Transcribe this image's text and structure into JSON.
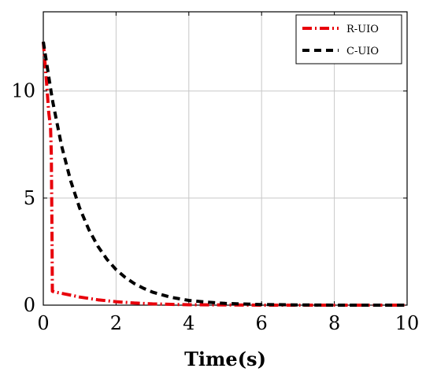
{
  "chart_data": {
    "type": "line",
    "title": "",
    "xlabel": "Time(s)",
    "ylabel": "",
    "xlim": [
      0,
      10
    ],
    "ylim": [
      0,
      13.7
    ],
    "xticks": [
      0,
      2,
      4,
      6,
      8,
      10
    ],
    "yticks": [
      0,
      5,
      10
    ],
    "grid": true,
    "legend_position": "top-right",
    "series": [
      {
        "name": "R-UIO",
        "color": "#e8000b",
        "style": "dash-dot",
        "x": [
          0,
          0.08,
          0.15,
          0.2,
          0.22,
          0.24,
          0.25,
          0.3,
          0.5,
          0.8,
          1.0,
          1.5,
          2.0,
          2.5,
          3.0,
          4.0,
          5.0,
          6.0,
          8.0,
          10.0
        ],
        "y": [
          12.3,
          10.6,
          9.0,
          8.3,
          7.0,
          3.0,
          0.65,
          0.62,
          0.55,
          0.45,
          0.38,
          0.25,
          0.16,
          0.1,
          0.06,
          0.02,
          0.01,
          0,
          0,
          0
        ]
      },
      {
        "name": "C-UIO",
        "color": "#000000",
        "style": "dashed",
        "x": [
          0,
          0.25,
          0.5,
          0.75,
          1.0,
          1.25,
          1.5,
          1.75,
          2.0,
          2.25,
          2.5,
          2.75,
          3.0,
          3.5,
          4.0,
          4.5,
          5.0,
          6.0,
          7.0,
          8.0,
          9.0,
          10.0
        ],
        "y": [
          12.3,
          9.59,
          7.46,
          5.81,
          4.53,
          3.53,
          2.75,
          2.14,
          1.66,
          1.3,
          1.01,
          0.79,
          0.61,
          0.37,
          0.22,
          0.14,
          0.08,
          0.03,
          0.01,
          0,
          0,
          0
        ]
      }
    ]
  }
}
